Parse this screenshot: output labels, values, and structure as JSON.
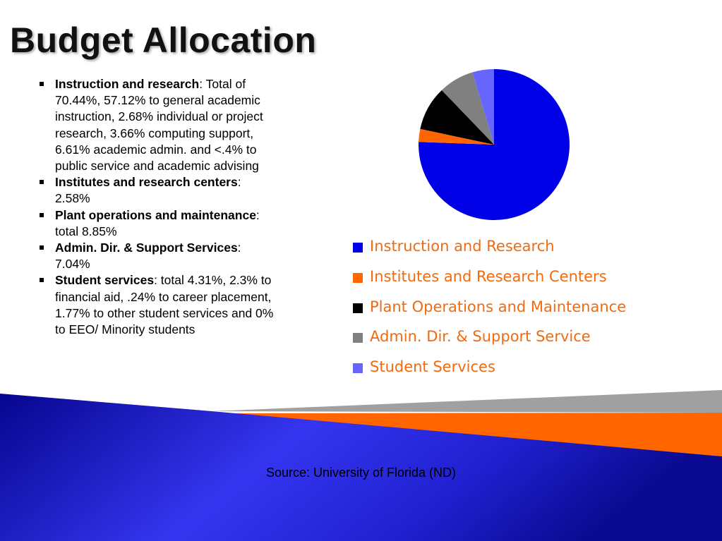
{
  "slide": {
    "title": "Budget Allocation",
    "source": "Source: University of Florida (ND)"
  },
  "bullets": [
    {
      "bold": "Instruction and research",
      "text": ": Total of 70.44%, 57.12% to general academic instruction, 2.68% individual or project research, 3.66% computing support, 6.61% academic admin. and <.4% to public service and academic advising"
    },
    {
      "bold": "Institutes and research centers",
      "text": ": 2.58%"
    },
    {
      "bold": "Plant operations and maintenance",
      "text": ": total 8.85%"
    },
    {
      "bold": "Admin. Dir. & Support Services",
      "text": ": 7.04%"
    },
    {
      "bold": "Student services",
      "text": ": total 4.31%, 2.3% to financial aid, .24% to career placement, 1.77% to other student services and 0% to EEO/ Minority students"
    }
  ],
  "chart_data": {
    "type": "pie",
    "title": "",
    "categories": [
      "Instruction and Research",
      "Institutes and Research Centers",
      "Plant Operations and Maintenance",
      "Admin. Dir. & Support Service",
      "Student Services"
    ],
    "values": [
      70.44,
      2.58,
      8.85,
      7.04,
      4.31
    ],
    "colors": [
      "#0000e6",
      "#ff6600",
      "#000000",
      "#808080",
      "#6666ff"
    ],
    "start": "12 o'clock",
    "direction": "clockwise",
    "legend": "below"
  },
  "theme": {
    "band_blue": "#1010c8",
    "band_orange": "#ff6600",
    "band_gray": "#a0a0a0",
    "legend_text": "#f26a10"
  }
}
